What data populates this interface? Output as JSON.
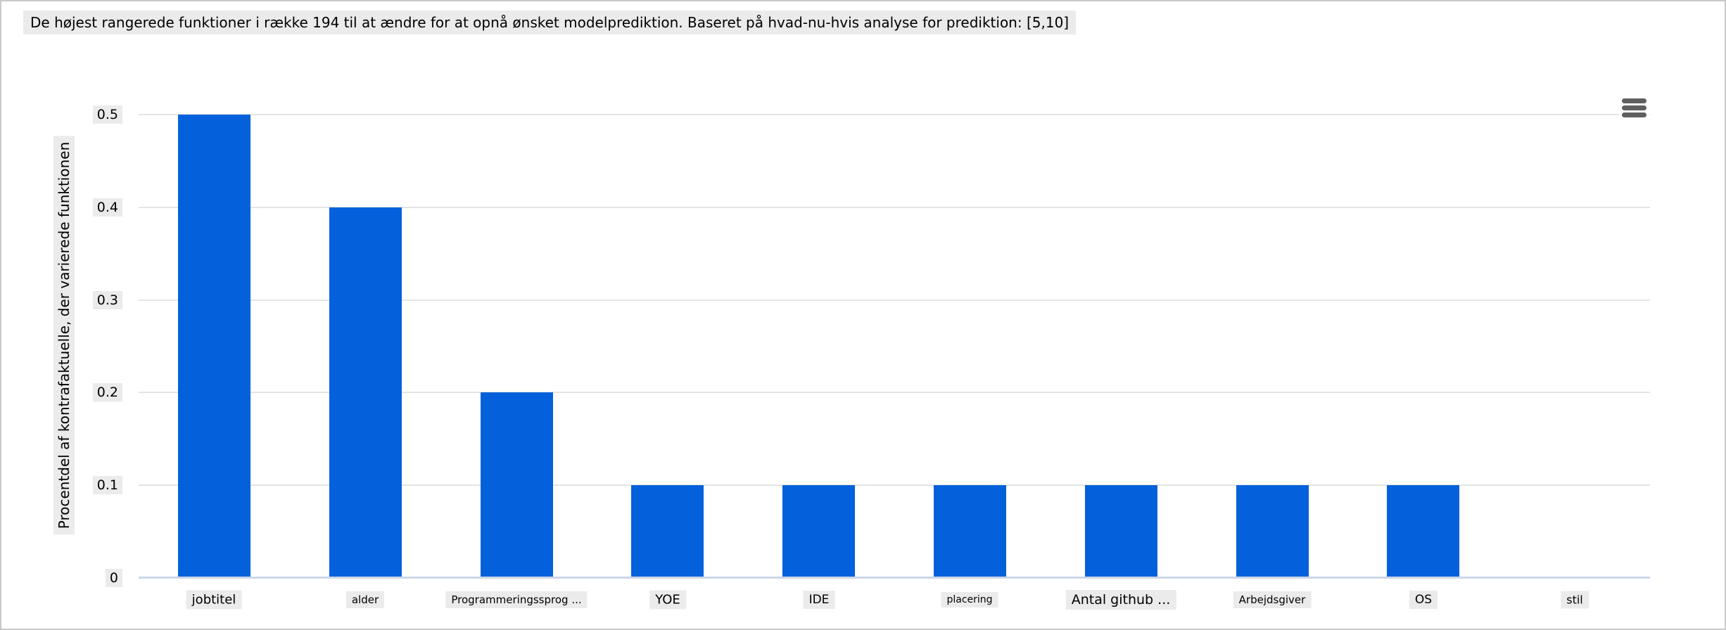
{
  "toolbar": {
    "menu_icon": "hamburger-menu-icon"
  },
  "chart_data": {
    "type": "bar",
    "title": "De højest rangerede funktioner i række 194 til at ændre for at opnå ønsket modelprediktion. Baseret på hvad-nu-hvis analyse for prediktion: [5,10]",
    "ylabel": "Procentdel af kontrafaktuelle, der varierede funktionen",
    "xlabel": "",
    "categories": [
      "jobtitel",
      "alder",
      "Programmeringssprog ...",
      "YOE",
      "IDE",
      "placering",
      "Antal github ...",
      "Arbejdsgiver",
      "OS",
      "stil"
    ],
    "values": [
      0.5,
      0.4,
      0.2,
      0.1,
      0.1,
      0.1,
      0.1,
      0.1,
      0.1,
      0
    ],
    "ylim": [
      0,
      0.5
    ],
    "yticks": [
      0,
      0.1,
      0.2,
      0.3,
      0.4,
      0.5
    ],
    "ytick_labels": [
      "0",
      "0.1",
      "0.2",
      "0.3",
      "0.4",
      "0.5"
    ],
    "grid": true,
    "legend": false,
    "bar_color": "#0561db",
    "gridline_color": "#e4e4e4",
    "axis_line_color": "#ccd6eb",
    "label_background": "#ebebeb",
    "text_color": "#000000"
  }
}
